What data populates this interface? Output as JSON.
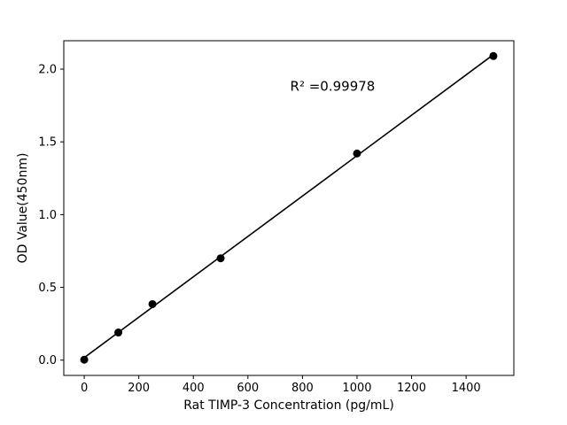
{
  "chart_data": {
    "type": "scatter",
    "title": "",
    "xlabel": "Rat TIMP-3 Concentration (pg/mL)",
    "ylabel": "OD Value(450nm)",
    "annotation": "R² =0.99978",
    "x": [
      0,
      125,
      250,
      500,
      1000,
      1500
    ],
    "y": [
      0.003,
      0.19,
      0.385,
      0.7,
      1.42,
      2.09
    ],
    "xlim": [
      -75,
      1575
    ],
    "ylim": [
      -0.105,
      2.195
    ],
    "xticks": [
      0,
      200,
      400,
      600,
      800,
      1000,
      1200,
      1400
    ],
    "xtick_labels": [
      "0",
      "200",
      "400",
      "600",
      "800",
      "1000",
      "1200",
      "1400"
    ],
    "yticks": [
      0.0,
      0.5,
      1.0,
      1.5,
      2.0
    ],
    "ytick_labels": [
      "0.0",
      "0.5",
      "1.0",
      "1.5",
      "2.0"
    ],
    "line": true,
    "legend": "none",
    "grid": false,
    "colors": {
      "marker": "#000000",
      "line": "#000000",
      "axis": "#000000",
      "background": "#ffffff"
    }
  }
}
